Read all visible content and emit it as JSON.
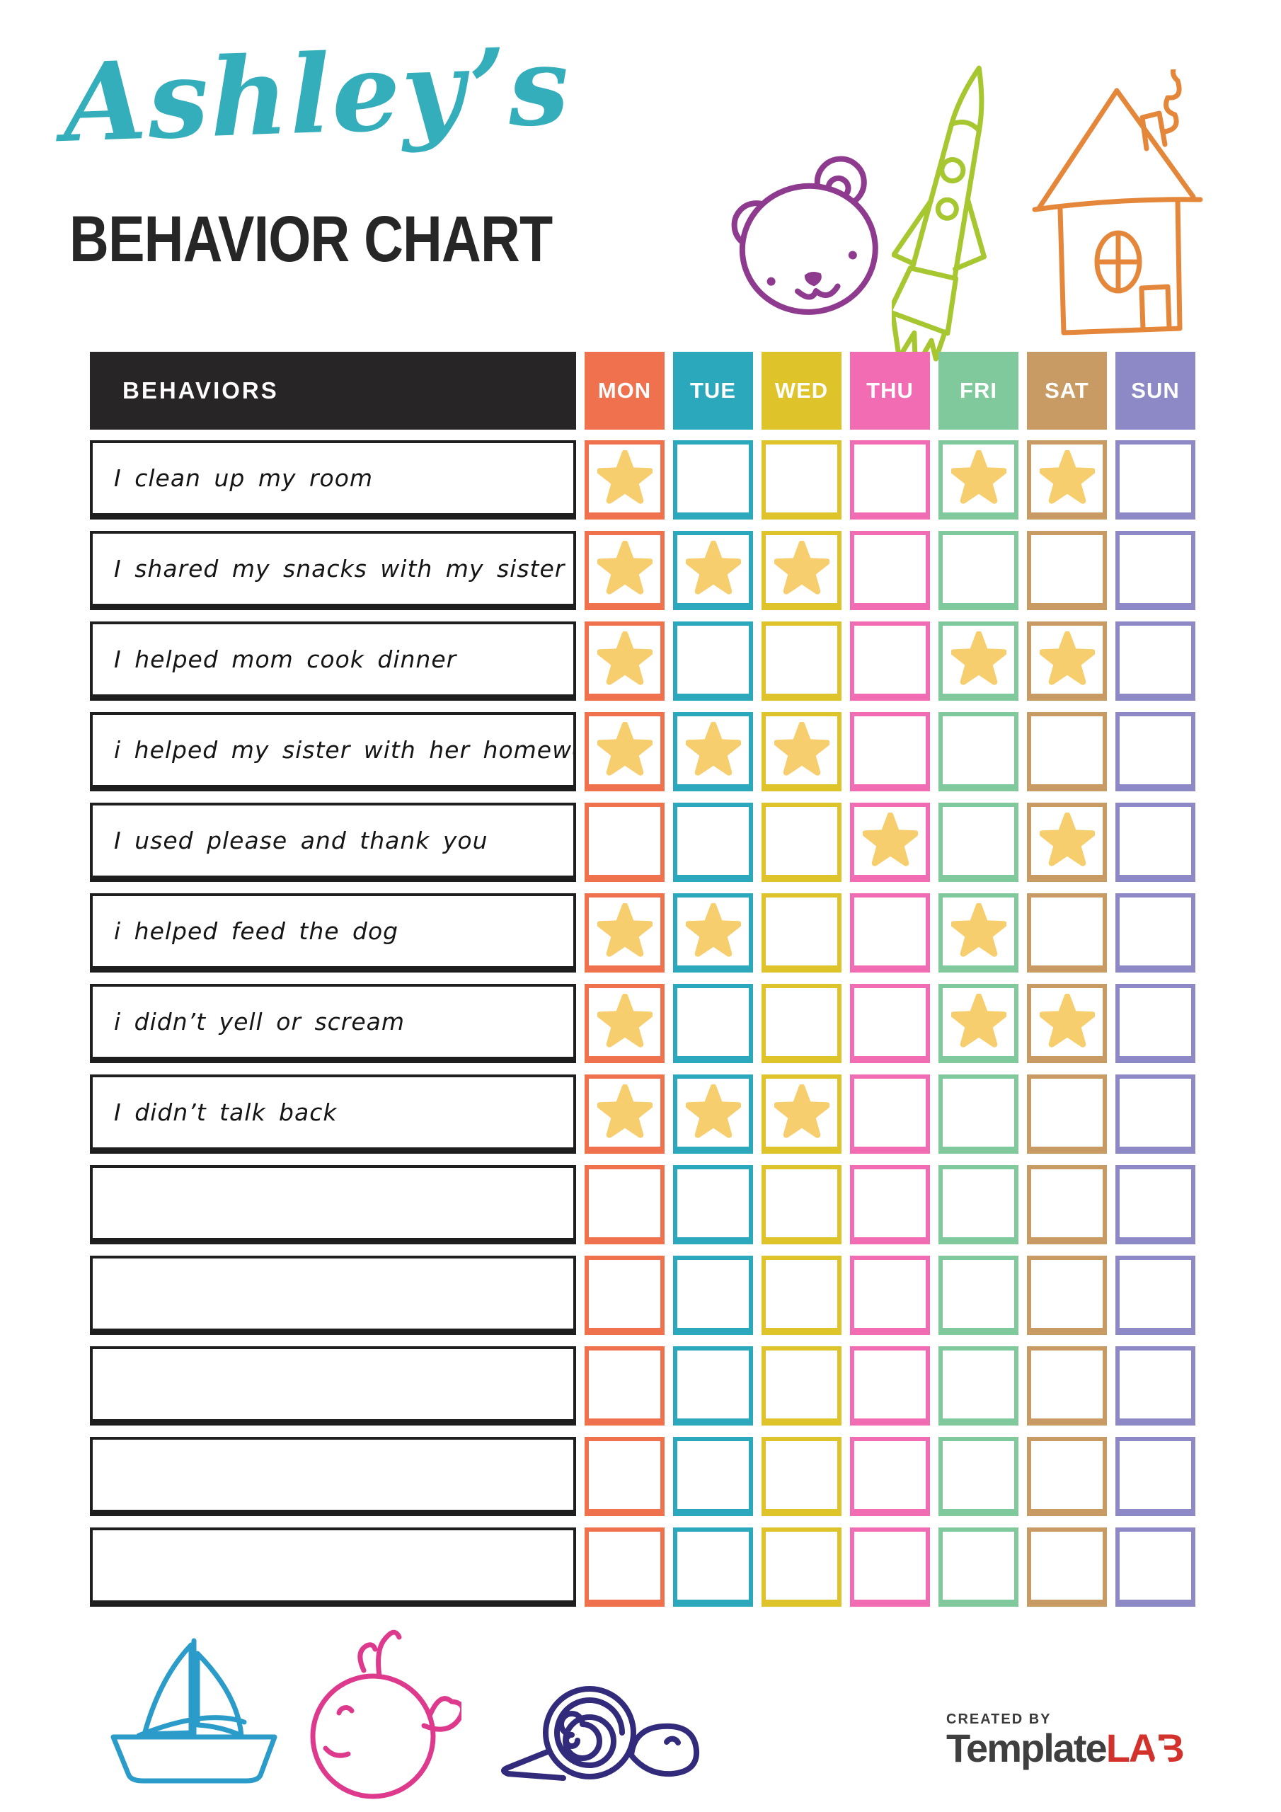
{
  "title": {
    "script": "Ashley’s",
    "script_color": "#35AEBC",
    "main": "BEHAVIOR CHART",
    "main_color": "#262626"
  },
  "table": {
    "behaviors_header": "BEHAVIORS",
    "header_bg": "#272525",
    "star_color": "#F7CE6E",
    "label_border_color": "#1E1E1E",
    "days": [
      {
        "key": "MON",
        "label": "MON",
        "color": "#F0714E"
      },
      {
        "key": "TUE",
        "label": "TUE",
        "color": "#2CA8BC"
      },
      {
        "key": "WED",
        "label": "WED",
        "color": "#DFC32B"
      },
      {
        "key": "THU",
        "label": "THU",
        "color": "#F16CB2"
      },
      {
        "key": "FRI",
        "label": "FRI",
        "color": "#7FC99C"
      },
      {
        "key": "SAT",
        "label": "SAT",
        "color": "#C89B64"
      },
      {
        "key": "SUN",
        "label": "SUN",
        "color": "#8D89C6"
      }
    ],
    "rows": [
      {
        "label": "I clean up my room",
        "stars": [
          "MON",
          "FRI",
          "SAT"
        ]
      },
      {
        "label": "I shared my snacks with my sister",
        "stars": [
          "MON",
          "TUE",
          "WED"
        ]
      },
      {
        "label": "I helped mom cook dinner",
        "stars": [
          "MON",
          "FRI",
          "SAT"
        ]
      },
      {
        "label": "i helped my sister with her homework",
        "stars": [
          "MON",
          "TUE",
          "WED"
        ]
      },
      {
        "label": "I used please and thank you",
        "stars": [
          "THU",
          "SAT"
        ]
      },
      {
        "label": "i helped feed the dog",
        "stars": [
          "MON",
          "TUE",
          "FRI"
        ]
      },
      {
        "label": "i didn’t yell or scream",
        "stars": [
          "MON",
          "FRI",
          "SAT"
        ]
      },
      {
        "label": "I didn’t talk back",
        "stars": [
          "MON",
          "TUE",
          "WED"
        ]
      },
      {
        "label": "",
        "stars": []
      },
      {
        "label": "",
        "stars": []
      },
      {
        "label": "",
        "stars": []
      },
      {
        "label": "",
        "stars": []
      },
      {
        "label": "",
        "stars": []
      }
    ]
  },
  "doodles": {
    "bear_color": "#8E3A8F",
    "rocket_color": "#A6C72F",
    "house_color": "#E5873B",
    "sailboat_color": "#2B9CC9",
    "whale_color": "#DE3A8D",
    "snail_color": "#322B7B"
  },
  "footer": {
    "created_by": "CREATED BY",
    "brand_primary": "Template",
    "brand_accent": "LAB",
    "brand_primary_color": "#3F3F3F",
    "brand_accent_color": "#D3312C"
  }
}
